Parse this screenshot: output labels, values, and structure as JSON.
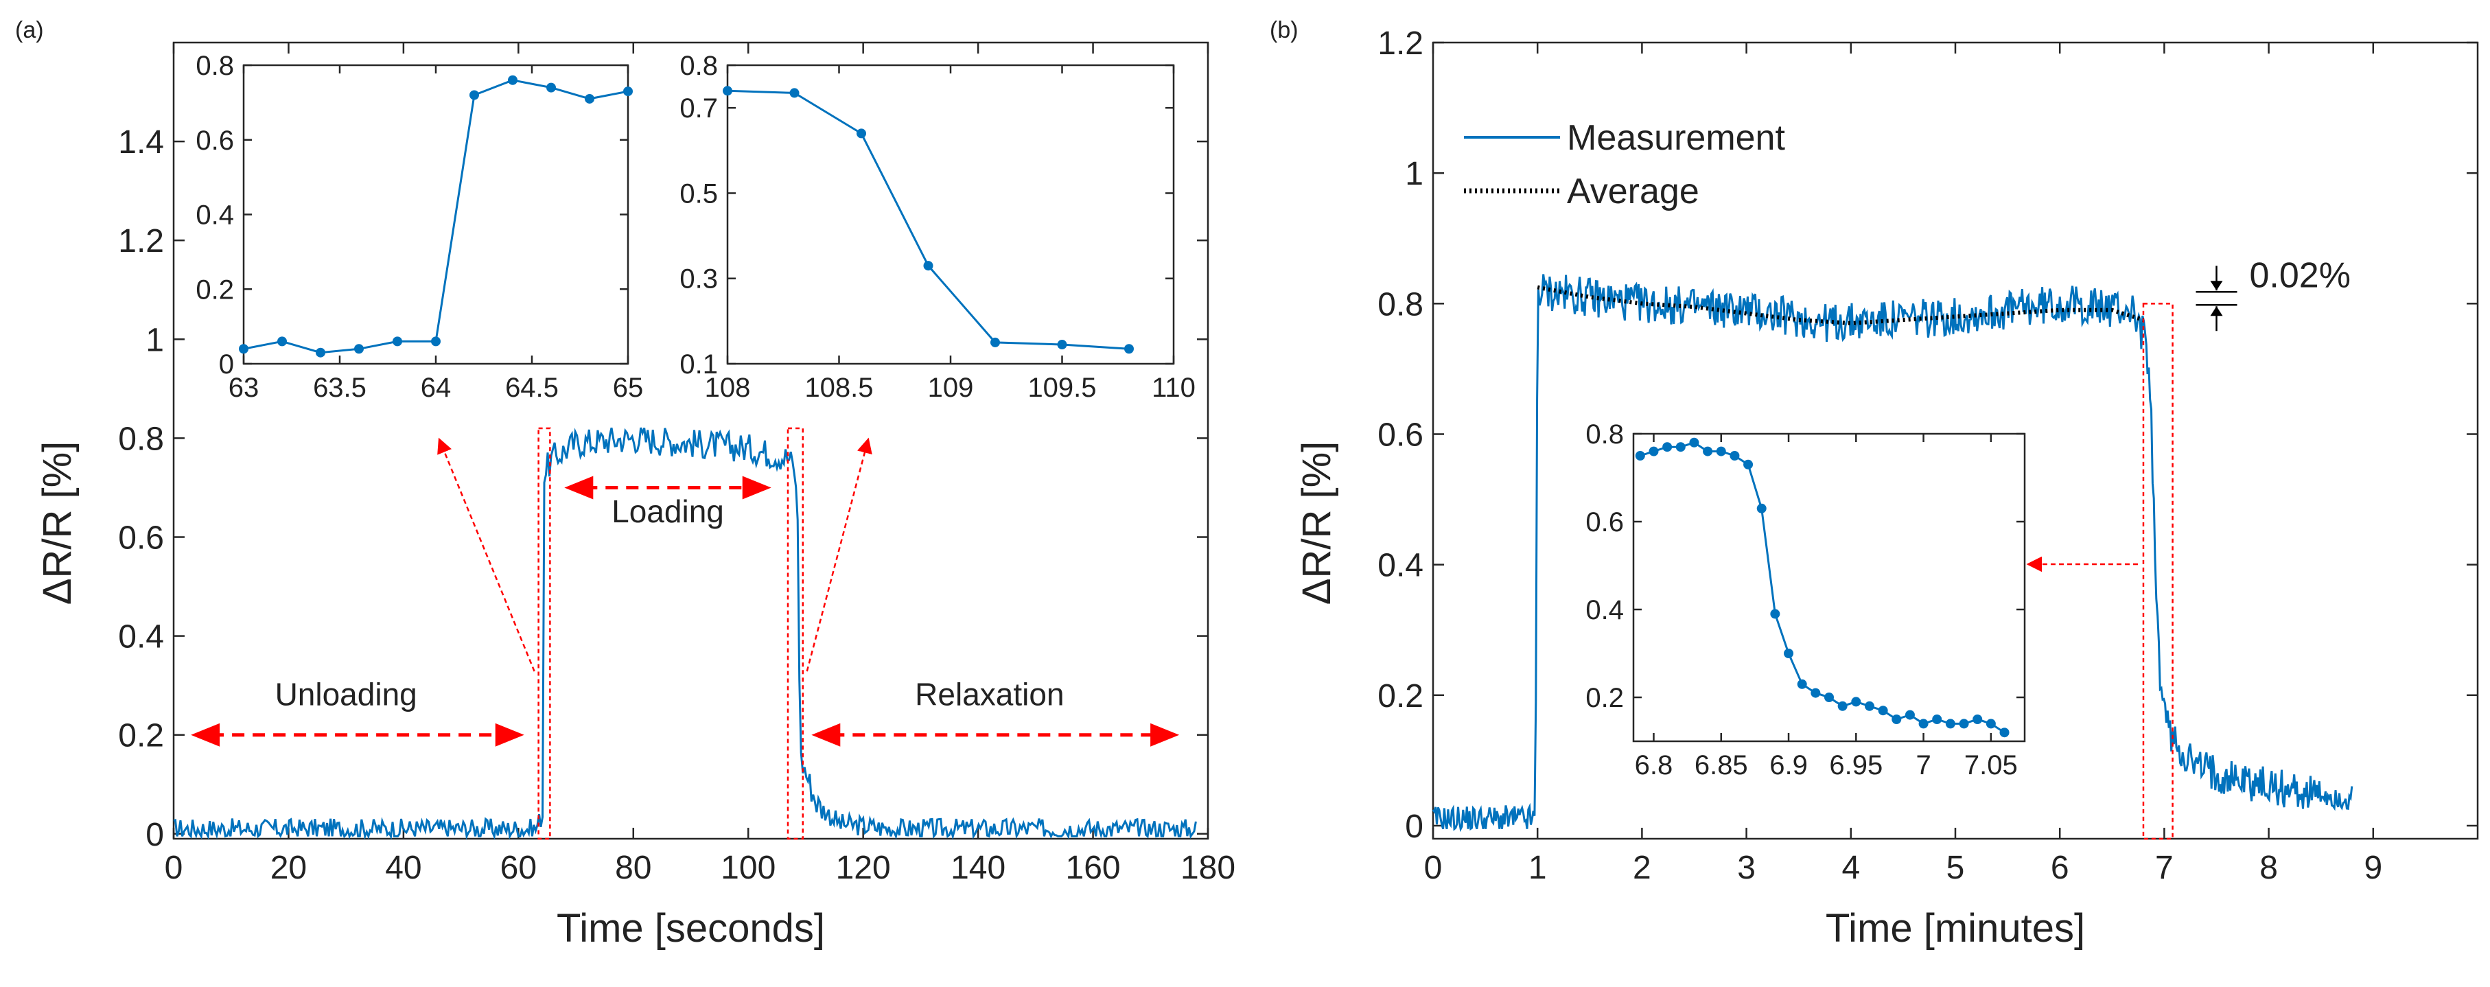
{
  "figure": {
    "panel_a_label": "(a)",
    "panel_b_label": "(b)"
  },
  "colors": {
    "series": "#0072BD",
    "average": "#000000",
    "arrow": "#FF0000",
    "box": "#FF0000",
    "axis": "#262626"
  },
  "chart_data": [
    {
      "id": "a_main",
      "type": "line",
      "panel": "(a)",
      "xlabel": "Time [seconds]",
      "ylabel": "ΔR/R [%]",
      "xlim": [
        0,
        180
      ],
      "ylim": [
        -0.01,
        1.6
      ],
      "xticks": [
        0,
        20,
        40,
        60,
        80,
        100,
        120,
        140,
        160,
        180
      ],
      "xticklabels": [
        "0",
        "20",
        "40",
        "60",
        "80",
        "100",
        "120",
        "140",
        "160",
        "180"
      ],
      "yticks": [
        0,
        0.2,
        0.4,
        0.6,
        0.8,
        1,
        1.2,
        1.4
      ],
      "yticklabels": [
        "0",
        "0.2",
        "0.4",
        "0.6",
        "0.8",
        "1",
        "1.2",
        "1.4"
      ],
      "series": [
        {
          "name": "Measurement",
          "noise_amplitude": 0.03,
          "step": 0.3,
          "segments": [
            [
              0,
              0.01
            ],
            [
              63,
              0.01
            ],
            [
              64.2,
              0.04
            ],
            [
              64.5,
              0.73
            ],
            [
              66,
              0.76
            ],
            [
              70,
              0.79
            ],
            [
              80,
              0.8
            ],
            [
              90,
              0.79
            ],
            [
              100,
              0.78
            ],
            [
              107,
              0.76
            ],
            [
              108,
              0.74
            ],
            [
              108.6,
              0.64
            ],
            [
              108.9,
              0.33
            ],
            [
              109.2,
              0.15
            ],
            [
              112,
              0.06
            ],
            [
              116,
              0.02
            ],
            [
              125,
              0.01
            ],
            [
              178,
              0.01
            ]
          ]
        }
      ],
      "annotations": [
        {
          "text": "Unloading",
          "x": 30,
          "y": 0.26
        },
        {
          "text": "Loading",
          "x": 86,
          "y": 0.63
        },
        {
          "text": "Relaxation",
          "x": 142,
          "y": 0.26
        }
      ],
      "arrows": [
        {
          "from": 3,
          "to": 61,
          "y": 0.2
        },
        {
          "from": 68,
          "to": 104,
          "y": 0.7
        },
        {
          "from": 111,
          "to": 175,
          "y": 0.2
        }
      ],
      "boxes": [
        [
          63.5,
          65.5
        ],
        [
          106.9,
          109.5
        ]
      ],
      "box_ylim": [
        -0.01,
        0.82
      ]
    },
    {
      "id": "a_inset1",
      "type": "line",
      "xlim": [
        63,
        65
      ],
      "ylim": [
        0,
        0.8
      ],
      "xticks": [
        63,
        63.5,
        64,
        64.5,
        65
      ],
      "xticklabels": [
        "63",
        "63.5",
        "64",
        "64.5",
        "65"
      ],
      "yticks": [
        0,
        0.2,
        0.4,
        0.6,
        0.8
      ],
      "yticklabels": [
        "0",
        "0.2",
        "0.4",
        "0.6",
        "0.8"
      ],
      "series": [
        {
          "name": "Measurement",
          "x": [
            63,
            63.2,
            63.4,
            63.6,
            63.8,
            64,
            64.2,
            64.4,
            64.6,
            64.8,
            65
          ],
          "y": [
            0.04,
            0.06,
            0.03,
            0.04,
            0.06,
            0.06,
            0.72,
            0.76,
            0.74,
            0.71,
            0.73
          ]
        }
      ]
    },
    {
      "id": "a_inset2",
      "type": "line",
      "xlim": [
        108,
        110
      ],
      "ylim": [
        0.1,
        0.8
      ],
      "xticks": [
        108,
        108.5,
        109,
        109.5,
        110
      ],
      "xticklabels": [
        "108",
        "108.5",
        "109",
        "109.5",
        "110"
      ],
      "yticks": [
        0.1,
        0.3,
        0.5,
        0.7,
        0.8
      ],
      "yticklabels": [
        "0.1",
        "0.3",
        "0.5",
        "0.7",
        "0.8"
      ],
      "series": [
        {
          "name": "Measurement",
          "x": [
            108,
            108.3,
            108.6,
            108.9,
            109.2,
            109.5,
            109.8
          ],
          "y": [
            0.74,
            0.735,
            0.64,
            0.33,
            0.15,
            0.145,
            0.135
          ]
        }
      ]
    },
    {
      "id": "b_main",
      "type": "line",
      "panel": "(b)",
      "xlabel": "Time [minutes]",
      "ylabel": "ΔR/R [%]",
      "xlim": [
        0,
        10
      ],
      "ylim": [
        -0.02,
        1.2
      ],
      "xticks": [
        0,
        1,
        2,
        3,
        4,
        5,
        6,
        7,
        8,
        9
      ],
      "xticklabels": [
        "0",
        "1",
        "2",
        "3",
        "4",
        "5",
        "6",
        "7",
        "8",
        "9"
      ],
      "yticks": [
        0,
        0.2,
        0.4,
        0.6,
        0.8,
        1,
        1.2
      ],
      "yticklabels": [
        "0",
        "0.2",
        "0.4",
        "0.6",
        "0.8",
        "1",
        "1.2"
      ],
      "legend": {
        "position": "top-left",
        "entries": [
          "Measurement",
          "Average"
        ]
      },
      "series": [
        {
          "name": "Measurement",
          "noise_amplitude": 0.03,
          "step": 0.012,
          "segments": [
            [
              0,
              0.01
            ],
            [
              0.98,
              0.01
            ],
            [
              1.0,
              0.82
            ],
            [
              2,
              0.8
            ],
            [
              3,
              0.79
            ],
            [
              3.8,
              0.77
            ],
            [
              5,
              0.78
            ],
            [
              6,
              0.8
            ],
            [
              6.7,
              0.79
            ],
            [
              6.83,
              0.74
            ],
            [
              6.88,
              0.6
            ],
            [
              6.92,
              0.35
            ],
            [
              6.97,
              0.21
            ],
            [
              7.05,
              0.14
            ],
            [
              7.3,
              0.09
            ],
            [
              8,
              0.06
            ],
            [
              8.8,
              0.04
            ]
          ]
        },
        {
          "name": "Average",
          "style": "dotted",
          "x": [
            1.0,
            1.5,
            2,
            2.5,
            3,
            3.5,
            4,
            4.5,
            5,
            5.5,
            6,
            6.5,
            6.8
          ],
          "y": [
            0.825,
            0.81,
            0.8,
            0.795,
            0.785,
            0.775,
            0.77,
            0.775,
            0.78,
            0.785,
            0.79,
            0.79,
            0.775
          ]
        }
      ],
      "dimension_label": "0.02%",
      "dimension_y": [
        0.818,
        0.798
      ],
      "dimension_x": 7.5,
      "box": [
        6.8,
        7.08
      ],
      "box_ylim": [
        -0.02,
        0.8
      ]
    },
    {
      "id": "b_inset",
      "type": "line",
      "xlim": [
        6.785,
        7.075
      ],
      "ylim": [
        0.1,
        0.8
      ],
      "xticks": [
        6.8,
        6.85,
        6.9,
        6.95,
        7,
        7.05
      ],
      "xticklabels": [
        "6.8",
        "6.85",
        "6.9",
        "6.95",
        "7",
        "7.05"
      ],
      "yticks": [
        0.2,
        0.4,
        0.6,
        0.8
      ],
      "yticklabels": [
        "0.2",
        "0.4",
        "0.6",
        "0.8"
      ],
      "series": [
        {
          "name": "Measurement",
          "x": [
            6.79,
            6.8,
            6.81,
            6.82,
            6.83,
            6.84,
            6.85,
            6.86,
            6.87,
            6.88,
            6.89,
            6.9,
            6.91,
            6.92,
            6.93,
            6.94,
            6.95,
            6.96,
            6.97,
            6.98,
            6.99,
            7,
            7.01,
            7.02,
            7.03,
            7.04,
            7.05,
            7.06
          ],
          "y": [
            0.75,
            0.76,
            0.77,
            0.77,
            0.78,
            0.76,
            0.76,
            0.75,
            0.73,
            0.63,
            0.39,
            0.3,
            0.23,
            0.21,
            0.2,
            0.18,
            0.19,
            0.18,
            0.17,
            0.15,
            0.16,
            0.14,
            0.15,
            0.14,
            0.14,
            0.15,
            0.14,
            0.12
          ]
        }
      ]
    }
  ]
}
